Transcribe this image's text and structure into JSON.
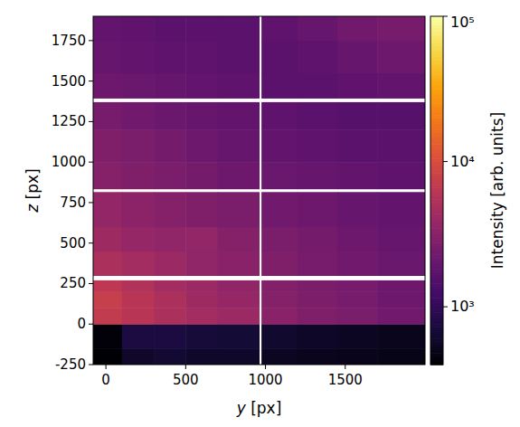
{
  "chart_data": {
    "type": "heatmap",
    "xlabel": "y [px]",
    "ylabel": "z [px]",
    "xlim": [
      -80,
      2000
    ],
    "ylim": [
      -250,
      1900
    ],
    "xticks": [
      0,
      500,
      1000,
      1500
    ],
    "yticks": [
      -250,
      0,
      250,
      500,
      750,
      1000,
      1250,
      1500,
      1750
    ],
    "x_edges": [
      -80,
      100,
      300,
      500,
      700,
      960,
      975,
      1200,
      1450,
      1700,
      2000
    ],
    "y_edges": [
      -250,
      -150,
      0,
      100,
      200,
      270,
      300,
      450,
      600,
      815,
      835,
      1000,
      1200,
      1370,
      1395,
      1550,
      1750,
      1900
    ],
    "cells": [
      [
        400,
        600,
        650,
        600,
        600,
        null,
        550,
        520,
        500,
        480
      ],
      [
        420,
        750,
        750,
        700,
        680,
        null,
        620,
        580,
        550,
        520
      ],
      [
        7000,
        6000,
        5000,
        4500,
        4000,
        null,
        3200,
        2800,
        2600,
        2300
      ],
      [
        7500,
        6000,
        5000,
        4200,
        3800,
        null,
        3000,
        2700,
        2500,
        2200
      ],
      [
        6500,
        5500,
        4500,
        4000,
        3500,
        null,
        2900,
        2600,
        2500,
        2200
      ],
      [
        null,
        null,
        null,
        null,
        null,
        null,
        null,
        null,
        null,
        null
      ],
      [
        5000,
        4500,
        4000,
        3500,
        3200,
        null,
        2800,
        2500,
        2300,
        2100
      ],
      [
        4200,
        3800,
        3500,
        3600,
        3000,
        null,
        2600,
        2400,
        2200,
        2000
      ],
      [
        3600,
        3300,
        3000,
        2800,
        2600,
        null,
        2300,
        2200,
        2000,
        1900
      ],
      [
        null,
        null,
        null,
        null,
        null,
        null,
        null,
        null,
        null,
        null
      ],
      [
        3000,
        2800,
        2600,
        2400,
        2200,
        null,
        2100,
        2000,
        1900,
        1800
      ],
      [
        2800,
        2600,
        2400,
        2200,
        2000,
        null,
        1900,
        1800,
        1700,
        1700
      ],
      [
        2500,
        2300,
        2100,
        2000,
        1900,
        null,
        1800,
        1700,
        1600,
        1600
      ],
      [
        null,
        null,
        null,
        null,
        null,
        null,
        null,
        null,
        null,
        null
      ],
      [
        2200,
        2100,
        2000,
        1900,
        1800,
        null,
        1700,
        1700,
        1800,
        1900
      ],
      [
        2000,
        1900,
        1800,
        1800,
        1700,
        null,
        1700,
        1800,
        2000,
        2200
      ],
      [
        1900,
        1800,
        1700,
        1700,
        1700,
        null,
        1800,
        2000,
        2300,
        2500
      ]
    ],
    "log": true,
    "colorbar_label": "Intensity [arb. units]",
    "colorbar_lim": [
      400,
      100000
    ],
    "colorbar_ticks": [
      {
        "value": 1000,
        "label": "10³"
      },
      {
        "value": 10000,
        "label": "10⁴"
      },
      {
        "value": 100000,
        "label": "10⁵"
      }
    ]
  }
}
